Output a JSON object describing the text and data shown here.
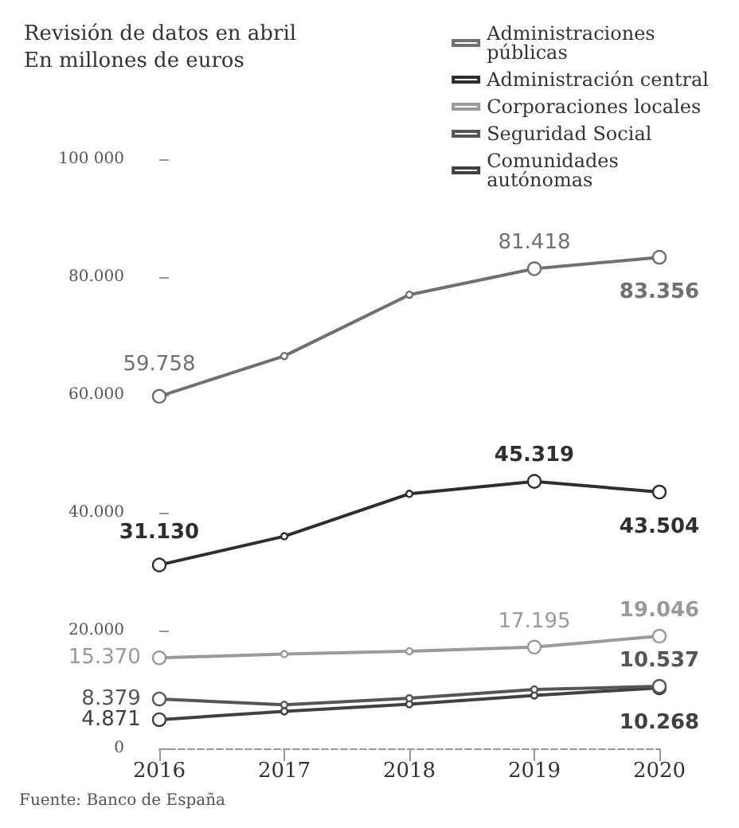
{
  "chart_data": {
    "type": "line",
    "title": "Revisión de datos en abril",
    "subtitle": "En millones de euros",
    "categories": [
      "2016",
      "2017",
      "2018",
      "2019",
      "2020"
    ],
    "series": [
      {
        "name": "Administraciones públicas",
        "color": "#707070",
        "values": [
          59758,
          66600,
          77000,
          81418,
          83356
        ],
        "value_labels": [
          "59.758",
          null,
          null,
          "81.418",
          "83.356"
        ]
      },
      {
        "name": "Administración central",
        "color": "#2e2e2e",
        "values": [
          31130,
          36000,
          43200,
          45319,
          43504
        ],
        "value_labels": [
          "31.130",
          null,
          null,
          "45.319",
          "43.504"
        ]
      },
      {
        "name": "Corporaciones locales",
        "color": "#9a9a9a",
        "values": [
          15370,
          16000,
          16500,
          17195,
          19046
        ],
        "value_labels": [
          "15.370",
          null,
          null,
          "17.195",
          "19.046"
        ]
      },
      {
        "name": "Seguridad Social",
        "color": "#555555",
        "values": [
          8379,
          7400,
          8500,
          10000,
          10537
        ],
        "value_labels": [
          "8.379",
          null,
          null,
          null,
          "10.537"
        ]
      },
      {
        "name": "Comunidades autónomas",
        "color": "#404040",
        "values": [
          4871,
          6300,
          7500,
          9000,
          10268
        ],
        "value_labels": [
          "4.871",
          null,
          null,
          null,
          "10.268"
        ]
      }
    ],
    "ylim": [
      0,
      100000
    ],
    "yticks": [
      0,
      {
        "value": 20000,
        "label": "20.000"
      },
      {
        "value": 40000,
        "label": "40.000"
      },
      {
        "value": 60000,
        "label": "60.000"
      },
      {
        "value": 80000,
        "label": "80.000"
      },
      {
        "value": 100000,
        "label": "100 000"
      }
    ],
    "grid": false,
    "legend": "top right",
    "marker": "circle",
    "line_style": "solid",
    "annotations": [
      "Fuente: Banco de España"
    ]
  }
}
